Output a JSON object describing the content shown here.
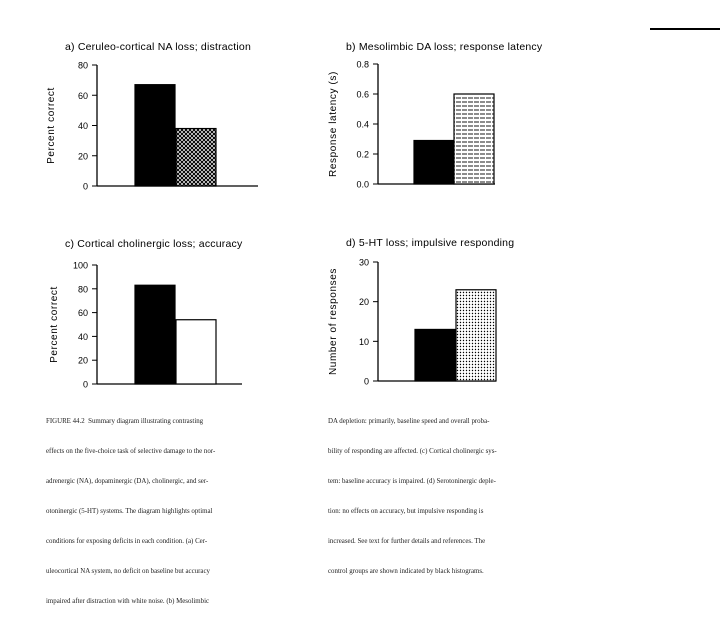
{
  "chart_data": [
    {
      "id": "a",
      "type": "bar",
      "title": "a)  Ceruleo-cortical  NA  loss;  distraction",
      "ylabel": "Percent   correct",
      "ylim": [
        0,
        80
      ],
      "yticks": [
        "0",
        "20",
        "40",
        "60",
        "80"
      ],
      "values": [
        67,
        38,
        0
      ],
      "fills": [
        "black",
        "crosshatch",
        "white"
      ]
    },
    {
      "id": "b",
      "type": "bar",
      "title": "b)  Mesolimbic  DA  loss;  response  latency",
      "ylabel": "Response  latency  (s)",
      "ylim": [
        0,
        0.8
      ],
      "yticks": [
        "0.0",
        "0.2",
        "0.4",
        "0.6",
        "0.8"
      ],
      "values": [
        0.29,
        0.6
      ],
      "fills": [
        "black",
        "hstripe"
      ]
    },
    {
      "id": "c",
      "type": "bar",
      "title": "c)  Cortical  cholinergic  loss;    accuracy",
      "ylabel": "Percent   correct",
      "ylim": [
        0,
        100
      ],
      "yticks": [
        "0",
        "20",
        "40",
        "60",
        "80",
        "100"
      ],
      "values": [
        83,
        54
      ],
      "fills": [
        "black",
        "white"
      ]
    },
    {
      "id": "d",
      "type": "bar",
      "title": "d)  5-HT  loss;    impulsive  responding",
      "ylabel": "Number  of  responses",
      "ylim": [
        0,
        30
      ],
      "yticks": [
        "0",
        "10",
        "20",
        "30"
      ],
      "values": [
        13,
        23
      ],
      "fills": [
        "black",
        "dots"
      ]
    }
  ],
  "caption_left": [
    "FIGURE 44.2  Summary diagram illustrating contrasting",
    "effects on the five-choice task of selective damage to the nor-",
    "adrenergic (NA), dopaminergic (DA), cholinergic, and ser-",
    "otoninergic (5-HT) systems. The diagram highlights optimal",
    "conditions for exposing deficits in each condition. (a) Cer-",
    "uleocortical NA system, no deficit on baseline but accuracy",
    "impaired after distraction with white noise. (b) Mesolimbic"
  ],
  "caption_right": [
    "DA depletion: primarily, baseline speed and overall proba-",
    "bility of responding are affected. (c) Cortical cholinergic sys-",
    "tem: baseline accuracy is impaired. (d) Serotoninergic deple-",
    "tion: no effects on accuracy, but impulsive responding is",
    "increased. See text for further details and references. The",
    "control groups are shown indicated by black histograms."
  ]
}
